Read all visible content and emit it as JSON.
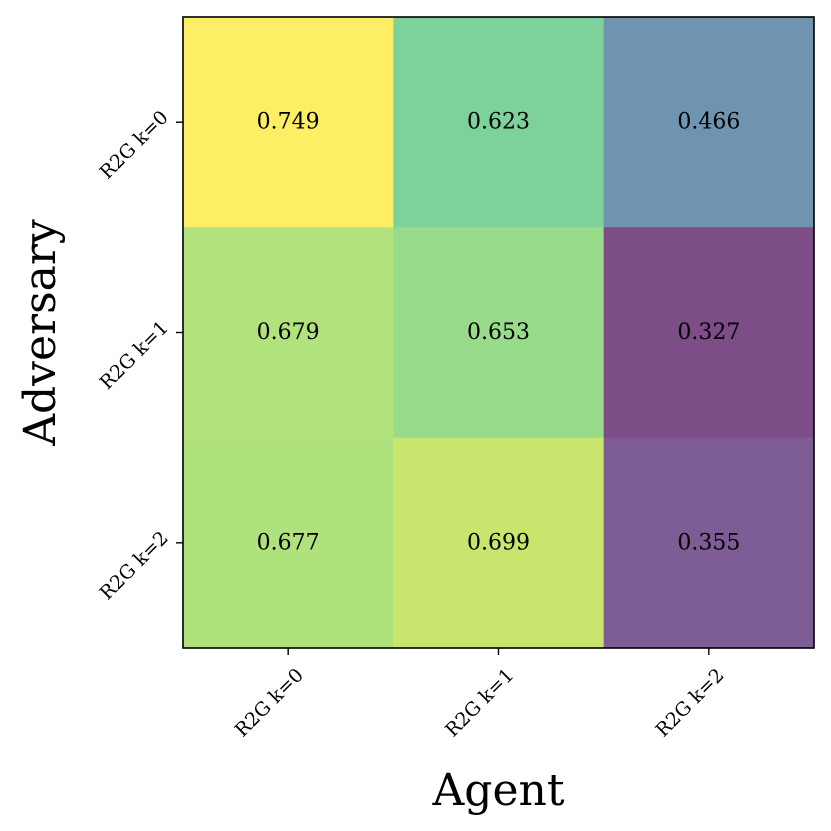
{
  "chart_data": {
    "type": "heatmap",
    "xlabel": "Agent",
    "ylabel": "Adversary",
    "x_categories": [
      "R2G k=0",
      "R2G k=1",
      "R2G k=2"
    ],
    "y_categories": [
      "R2G k=0",
      "R2G k=1",
      "R2G k=2"
    ],
    "values": [
      [
        0.749,
        0.623,
        0.466
      ],
      [
        0.679,
        0.653,
        0.327
      ],
      [
        0.677,
        0.699,
        0.355
      ]
    ],
    "colormap": "viridis",
    "cell_alpha": 0.7,
    "value_range": [
      0.327,
      0.749
    ],
    "colorbar": false,
    "grid": false
  }
}
